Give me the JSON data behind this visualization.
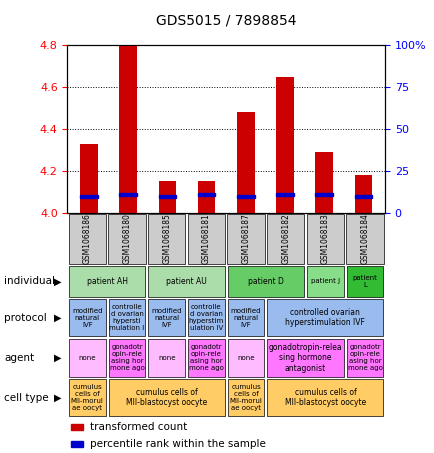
{
  "title": "GDS5015 / 7898854",
  "samples": [
    "GSM1068186",
    "GSM1068180",
    "GSM1068185",
    "GSM1068181",
    "GSM1068187",
    "GSM1068182",
    "GSM1068183",
    "GSM1068184"
  ],
  "transformed_counts": [
    4.33,
    4.82,
    4.15,
    4.15,
    4.48,
    4.65,
    4.29,
    4.18
  ],
  "percentile_ranks": [
    10,
    11,
    10,
    11,
    10,
    11,
    11,
    10
  ],
  "ylim": [
    4.0,
    4.8
  ],
  "y_ticks_left": [
    4.0,
    4.2,
    4.4,
    4.6,
    4.8
  ],
  "y_ticks_right_vals": [
    0,
    25,
    50,
    75,
    100
  ],
  "y_ticks_right_labels": [
    "0",
    "25",
    "50",
    "75",
    "100%"
  ],
  "bar_color": "#cc0000",
  "percentile_color": "#0000cc",
  "sample_bg_color": "#cccccc",
  "individual_groups": [
    {
      "label": "patient AH",
      "start": 0,
      "end": 2,
      "color": "#aaddaa"
    },
    {
      "label": "patient AU",
      "start": 2,
      "end": 4,
      "color": "#aaddaa"
    },
    {
      "label": "patient D",
      "start": 4,
      "end": 6,
      "color": "#66cc66"
    },
    {
      "label": "patient J",
      "start": 6,
      "end": 7,
      "color": "#88dd88"
    },
    {
      "label": "patient\nL",
      "start": 7,
      "end": 8,
      "color": "#33bb33"
    }
  ],
  "protocol_cells": [
    {
      "label": "modified\nnatural\nIVF",
      "start": 0,
      "end": 1,
      "color": "#99bbee"
    },
    {
      "label": "controlle\nd ovarian\nhypersti\nmulation I",
      "start": 1,
      "end": 2,
      "color": "#99bbee"
    },
    {
      "label": "modified\nnatural\nIVF",
      "start": 2,
      "end": 3,
      "color": "#99bbee"
    },
    {
      "label": "controlle\nd ovarian\nhyperstim\nulation IV",
      "start": 3,
      "end": 4,
      "color": "#99bbee"
    },
    {
      "label": "modified\nnatural\nIVF",
      "start": 4,
      "end": 5,
      "color": "#99bbee"
    },
    {
      "label": "controlled ovarian\nhyperstimulation IVF",
      "start": 5,
      "end": 8,
      "color": "#99bbee"
    }
  ],
  "agent_cells": [
    {
      "label": "none",
      "start": 0,
      "end": 1,
      "color": "#ffbbff"
    },
    {
      "label": "gonadotr\nopin-rele\nasing hor\nmone ago",
      "start": 1,
      "end": 2,
      "color": "#ff77ff"
    },
    {
      "label": "none",
      "start": 2,
      "end": 3,
      "color": "#ffbbff"
    },
    {
      "label": "gonadotr\nopin-rele\nasing hor\nmone ago",
      "start": 3,
      "end": 4,
      "color": "#ff77ff"
    },
    {
      "label": "none",
      "start": 4,
      "end": 5,
      "color": "#ffbbff"
    },
    {
      "label": "gonadotropin-relea\nsing hormone\nantagonist",
      "start": 5,
      "end": 7,
      "color": "#ff77ff"
    },
    {
      "label": "gonadotr\nopin-rele\nasing hor\nmone ago",
      "start": 7,
      "end": 8,
      "color": "#ff77ff"
    }
  ],
  "celltype_cells": [
    {
      "label": "cumulus\ncells of\nMII-morul\nae oocyt",
      "start": 0,
      "end": 1,
      "color": "#ffcc66"
    },
    {
      "label": "cumulus cells of\nMII-blastocyst oocyte",
      "start": 1,
      "end": 4,
      "color": "#ffcc66"
    },
    {
      "label": "cumulus\ncells of\nMII-morul\nae oocyt",
      "start": 4,
      "end": 5,
      "color": "#ffcc66"
    },
    {
      "label": "cumulus cells of\nMII-blastocyst oocyte",
      "start": 5,
      "end": 8,
      "color": "#ffcc66"
    }
  ],
  "row_labels": [
    "individual",
    "protocol",
    "agent",
    "cell type"
  ],
  "legend_red_label": "transformed count",
  "legend_blue_label": "percentile rank within the sample"
}
